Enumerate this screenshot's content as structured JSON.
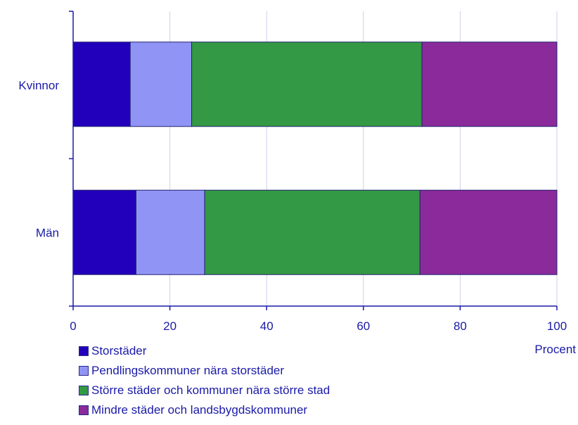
{
  "chart_data": {
    "type": "bar",
    "orientation": "horizontal",
    "stacked": true,
    "categories": [
      "Kvinnor",
      "Män"
    ],
    "series": [
      {
        "name": "Storstäder",
        "values": [
          11.8,
          13.0
        ],
        "color": "#2200bb"
      },
      {
        "name": "Pendlingskommuner nära storstäder",
        "values": [
          12.7,
          14.2
        ],
        "color": "#8f94f5"
      },
      {
        "name": "Större städer och kommuner nära större stad",
        "values": [
          47.6,
          44.5
        ],
        "color": "#339944"
      },
      {
        "name": "Mindre städer och landsbygdskommuner",
        "values": [
          27.9,
          28.3
        ],
        "color": "#8b2a9b"
      }
    ],
    "xlabel": "Procent",
    "xlim": [
      0,
      100
    ],
    "xticks": [
      0,
      20,
      40,
      60,
      80,
      100
    ],
    "grid": "vertical",
    "legend_position": "bottom-left"
  }
}
